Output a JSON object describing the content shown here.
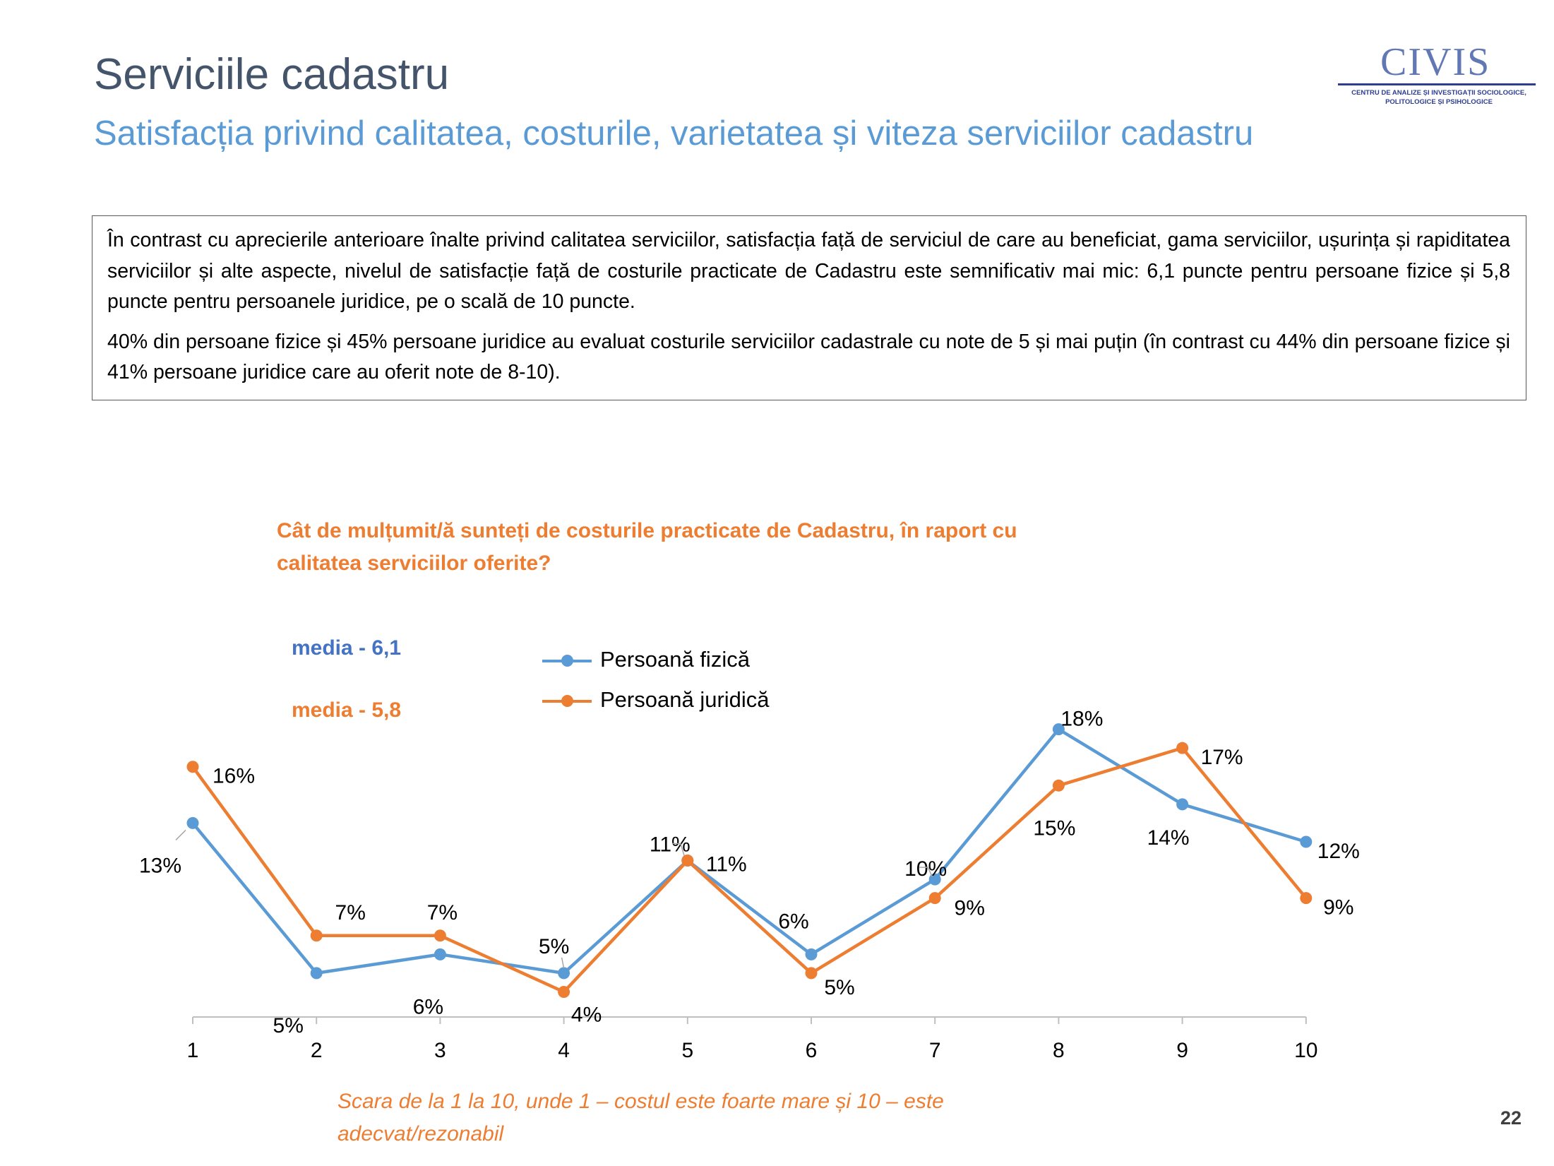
{
  "slide": {
    "title": "Serviciile cadastru",
    "subtitle": "Satisfacția privind calitatea, costurile, varietatea și viteza serviciilor cadastru",
    "page_number": "22"
  },
  "logo": {
    "name": "CIVIS",
    "tagline_line1": "CENTRU DE ANALIZE ȘI INVESTIGAȚII SOCIOLOGICE,",
    "tagline_line2": "POLITOLOGICE ȘI PSIHOLOGICE"
  },
  "textbox": {
    "paragraph1": "În contrast cu aprecierile anterioare înalte privind calitatea serviciilor, satisfacția față de serviciul de care au beneficiat, gama serviciilor, ușurința și rapiditatea serviciilor și alte aspecte, nivelul de satisfacție față de costurile practicate de Cadastru este semnificativ mai mic: 6,1 puncte pentru persoane fizice și 5,8 puncte pentru persoanele juridice, pe o scală de 10 puncte.",
    "paragraph2": "40% din persoane fizice și 45% persoane juridice au evaluat costurile serviciilor cadastrale cu note de 5 și mai puțin (în contrast cu 44% din persoane fizice și 41% persoane juridice care au oferit note de 8-10)."
  },
  "question": "Cât de mulțumit/ă sunteți de costurile practicate de Cadastru, în raport cu calitatea serviciilor oferite?",
  "media": {
    "fizica": "media - 6,1",
    "juridica": "media - 5,8"
  },
  "footnote": "Scara de la 1 la 10, unde 1 – costul este foarte mare și 10 – este adecvat/rezonabil",
  "colors": {
    "fizica": "#5B9BD5",
    "juridica": "#ED7D31",
    "media_fizica": "#4472C4"
  },
  "chart_data": {
    "type": "line",
    "title": "",
    "xlabel": "",
    "ylabel": "",
    "categories": [
      "1",
      "2",
      "3",
      "4",
      "5",
      "6",
      "7",
      "8",
      "9",
      "10"
    ],
    "ylim": [
      0,
      20
    ],
    "grid": false,
    "legend_position": "top-center",
    "series": [
      {
        "name": "Persoană fizică",
        "values": [
          13,
          5,
          6,
          5,
          11,
          6,
          10,
          18,
          14,
          12
        ],
        "labels": [
          "13%",
          "5%",
          "6%",
          "5%",
          "11%",
          "6%",
          "10%",
          "18%",
          "14%",
          "12%"
        ]
      },
      {
        "name": "Persoană juridică",
        "values": [
          16,
          7,
          7,
          4,
          11,
          5,
          9,
          15,
          17,
          9
        ],
        "labels": [
          "16%",
          "7%",
          "7%",
          "4%",
          "11%",
          "5%",
          "9%",
          "15%",
          "17%",
          "9%"
        ]
      }
    ]
  }
}
